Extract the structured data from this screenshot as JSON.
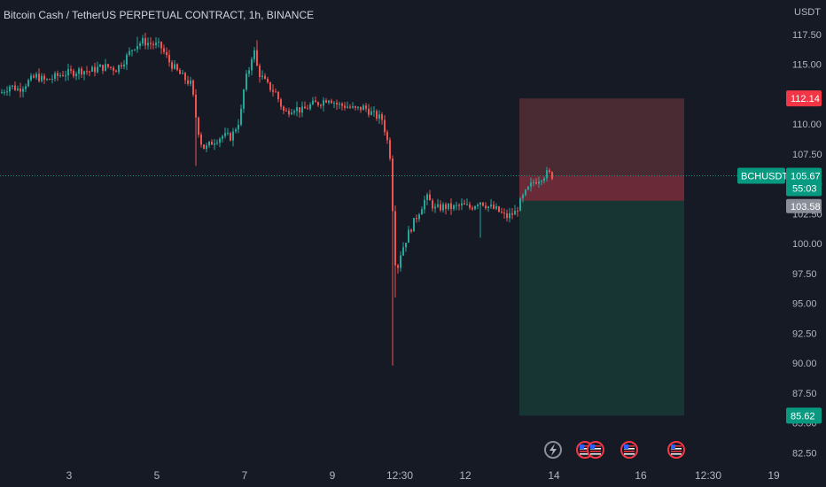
{
  "header": {
    "title": "Bitcoin Cash / TetherUS PERPETUAL CONTRACT, 1h, BINANCE",
    "currency": "USDT"
  },
  "colors": {
    "background": "#161a25",
    "up": "#26a69a",
    "down": "#ef5350",
    "stop_zone": "#4a2a33",
    "stop_zone_overlap": "#6b2a38",
    "target_zone": "#163533",
    "text": "#b2b5be"
  },
  "tags": {
    "stop": "112.14",
    "symbol": "BCHUSDT.P",
    "last_price": "105.67",
    "countdown": "55:03",
    "entry": "103.58",
    "target": "85.62"
  },
  "event_icons": [
    {
      "name": "lightning-icon",
      "symbol": "⚡"
    },
    {
      "name": "us-flag-icon",
      "symbol": "🇺🇸"
    },
    {
      "name": "us-flag-icon",
      "symbol": "🇺🇸"
    },
    {
      "name": "us-flag-icon",
      "symbol": "🇺🇸"
    },
    {
      "name": "us-flag-icon",
      "symbol": "🇺🇸"
    }
  ],
  "chart_data": {
    "type": "candlestick",
    "title": "Bitcoin Cash / TetherUS PERPETUAL CONTRACT, 1h, BINANCE",
    "ylim": [
      81.5,
      120
    ],
    "y_ticks": [
      "82.50",
      "85.00",
      "87.50",
      "90.00",
      "92.50",
      "95.00",
      "97.50",
      "100.00",
      "102.50",
      "105.00",
      "107.50",
      "110.00",
      "112.50",
      "115.00",
      "117.50"
    ],
    "x_ticks": [
      "3",
      "5",
      "7",
      "9",
      "12:30",
      "12",
      "14",
      "16",
      "12:30",
      "19"
    ],
    "last_price": 105.67,
    "position": {
      "type": "long",
      "entry": 103.58,
      "stop": 112.14,
      "target": 85.62
    },
    "close_path": [
      [
        0,
        112.6
      ],
      [
        10,
        113.2
      ],
      [
        20,
        112.9
      ],
      [
        30,
        113.5
      ],
      [
        40,
        114.0
      ],
      [
        50,
        113.6
      ],
      [
        60,
        113.9
      ],
      [
        70,
        114.2
      ],
      [
        80,
        114.3
      ],
      [
        90,
        114.5
      ],
      [
        100,
        114.4
      ],
      [
        110,
        114.7
      ],
      [
        120,
        114.8
      ],
      [
        130,
        114.6
      ],
      [
        140,
        115.4
      ],
      [
        150,
        116.5
      ],
      [
        160,
        116.9
      ],
      [
        170,
        116.7
      ],
      [
        180,
        116.5
      ],
      [
        190,
        115.2
      ],
      [
        200,
        114.3
      ],
      [
        210,
        113.6
      ],
      [
        215,
        113.3
      ],
      [
        220,
        110.6
      ],
      [
        225,
        108.6
      ],
      [
        230,
        107.9
      ],
      [
        240,
        108.6
      ],
      [
        250,
        109.0
      ],
      [
        260,
        108.9
      ],
      [
        270,
        110.5
      ],
      [
        275,
        113.4
      ],
      [
        280,
        114.6
      ],
      [
        285,
        116.4
      ],
      [
        290,
        114.4
      ],
      [
        300,
        113.3
      ],
      [
        310,
        112.6
      ],
      [
        320,
        110.9
      ],
      [
        330,
        111.4
      ],
      [
        340,
        111.1
      ],
      [
        350,
        111.6
      ],
      [
        360,
        111.8
      ],
      [
        370,
        112.2
      ],
      [
        380,
        111.6
      ],
      [
        390,
        111.5
      ],
      [
        400,
        111.2
      ],
      [
        410,
        111.4
      ],
      [
        420,
        110.8
      ],
      [
        430,
        110.4
      ],
      [
        435,
        109.0
      ],
      [
        440,
        107.0
      ],
      [
        443,
        101.0
      ],
      [
        446,
        97.3
      ],
      [
        450,
        99.0
      ],
      [
        460,
        100.9
      ],
      [
        470,
        102.4
      ],
      [
        480,
        103.9
      ],
      [
        490,
        102.9
      ],
      [
        500,
        103.1
      ],
      [
        510,
        103.0
      ],
      [
        520,
        103.2
      ],
      [
        530,
        103.0
      ],
      [
        540,
        103.6
      ],
      [
        550,
        103.1
      ],
      [
        560,
        102.8
      ],
      [
        570,
        102.2
      ],
      [
        580,
        102.6
      ],
      [
        590,
        104.0
      ],
      [
        600,
        105.1
      ],
      [
        610,
        105.6
      ],
      [
        617,
        105.9
      ],
      [
        622,
        105.67
      ]
    ]
  }
}
